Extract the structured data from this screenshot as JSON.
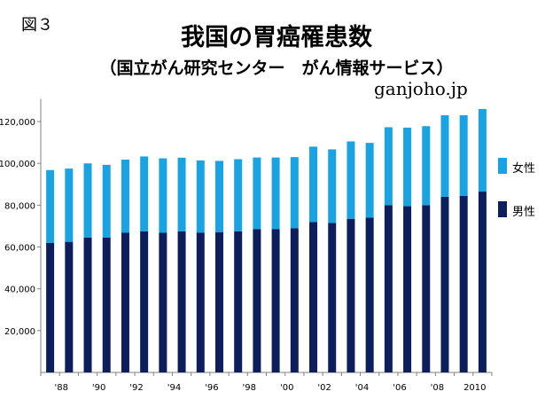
{
  "figure_label": "図３",
  "title": "我国の胃癌罹患数",
  "subtitle": "（国立がん研究センター　がん情報サービス）",
  "source": "ganjoho.jp",
  "colors": {
    "male": "#0c1e5c",
    "female": "#1aa3e2",
    "axis": "#808080"
  },
  "chart_data": {
    "type": "bar",
    "stacked": true,
    "title": "我国の胃癌罹患数",
    "x": [
      1987,
      1988,
      1989,
      1990,
      1991,
      1992,
      1993,
      1994,
      1995,
      1996,
      1997,
      1998,
      1999,
      2000,
      2001,
      2002,
      2003,
      2004,
      2005,
      2006,
      2007,
      2008,
      2009,
      2010
    ],
    "x_tick_labels": [
      "'88",
      "'90",
      "'92",
      "'94",
      "'96",
      "'98",
      "'00",
      "'02",
      "'04",
      "'06",
      "'08",
      "2010"
    ],
    "series": [
      {
        "name": "男性",
        "key": "male",
        "values": [
          62000,
          62500,
          64500,
          64500,
          66800,
          67500,
          66800,
          67500,
          66800,
          67000,
          67500,
          68500,
          68500,
          69000,
          72000,
          71500,
          73500,
          74000,
          80000,
          79500,
          80000,
          84000,
          84500,
          86500
        ]
      },
      {
        "name": "女性",
        "key": "female",
        "values": [
          34800,
          35000,
          35500,
          34800,
          35000,
          35800,
          35600,
          35200,
          34600,
          34200,
          34500,
          34300,
          34300,
          34000,
          36000,
          35200,
          37000,
          35800,
          37300,
          37600,
          37800,
          39000,
          38500,
          39500
        ]
      }
    ],
    "y_ticks": [
      20000,
      40000,
      60000,
      80000,
      100000,
      120000
    ],
    "y_tick_labels": [
      "20,000",
      "40,000",
      "60,000",
      "80,000",
      "100,000",
      "120,000"
    ],
    "ylim": [
      0,
      130000
    ],
    "grid": false,
    "legend": [
      {
        "label": "女性",
        "key": "female"
      },
      {
        "label": "男性",
        "key": "male"
      }
    ],
    "legend_position": "right"
  }
}
